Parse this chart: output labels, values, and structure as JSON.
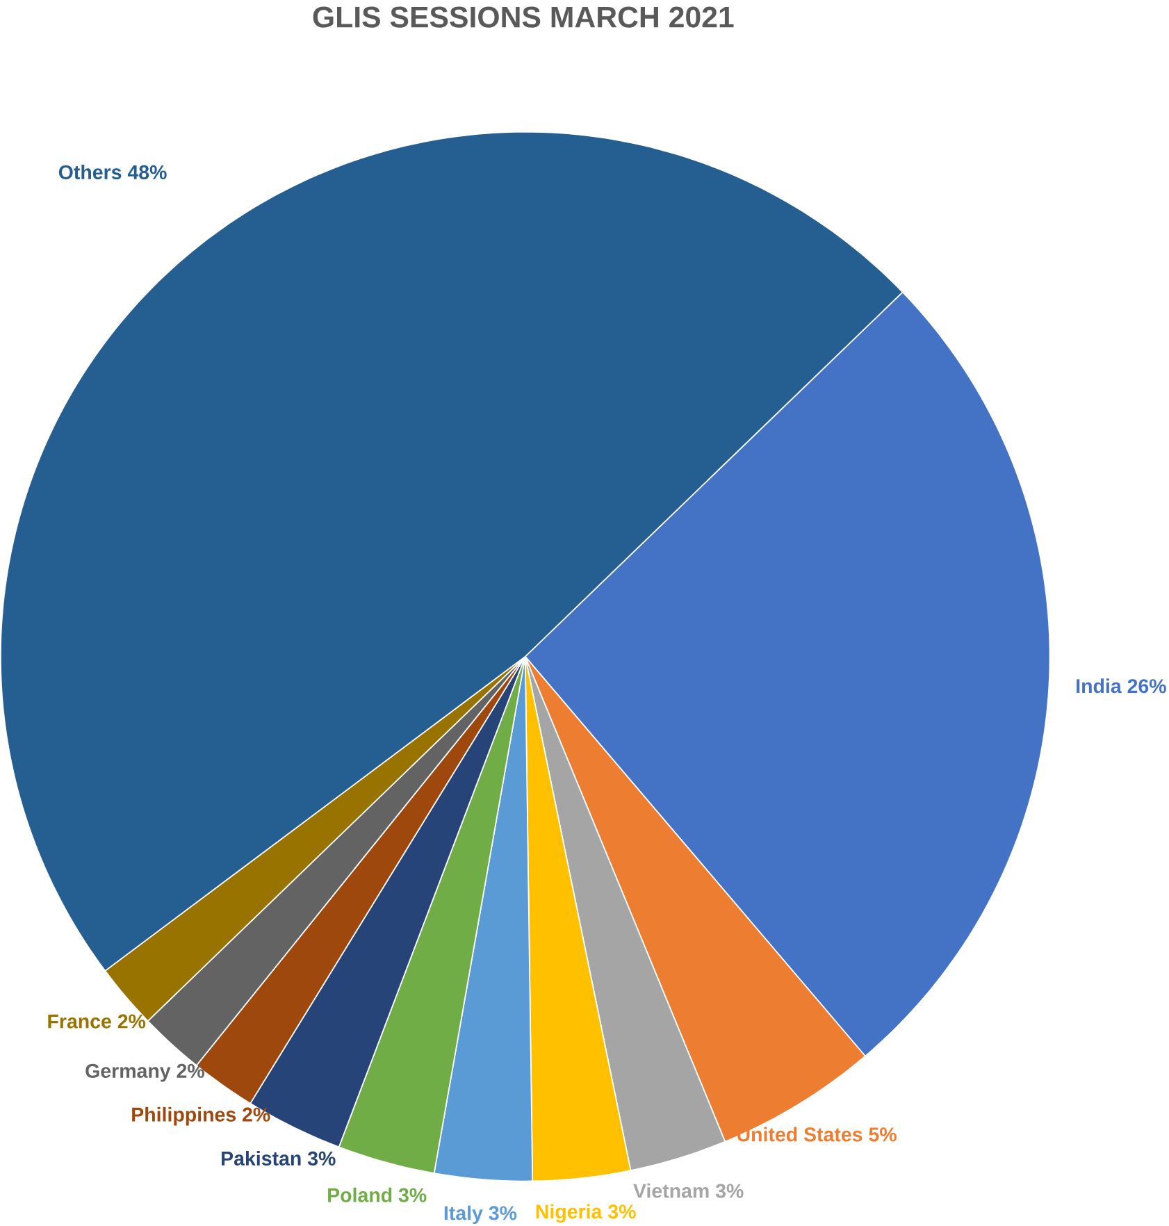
{
  "chart_data": {
    "type": "pie",
    "title": "GLIS SESSIONS MARCH 2021",
    "categories": [
      "India",
      "United States",
      "Vietnam",
      "Nigeria",
      "Italy",
      "Poland",
      "Pakistan",
      "Philippines",
      "Germany",
      "France",
      "Others"
    ],
    "values": [
      26,
      5,
      3,
      3,
      3,
      3,
      3,
      2,
      2,
      2,
      48
    ],
    "value_labels": [
      "26%",
      "5%",
      "3%",
      "3%",
      "3%",
      "3%",
      "3%",
      "2%",
      "2%",
      "2%",
      "48%"
    ],
    "colors": [
      "#4472c4",
      "#ed7d31",
      "#a5a5a5",
      "#ffc000",
      "#5b9bd5",
      "#70ad47",
      "#264478",
      "#9e480e",
      "#636363",
      "#997300",
      "#255e91"
    ]
  }
}
